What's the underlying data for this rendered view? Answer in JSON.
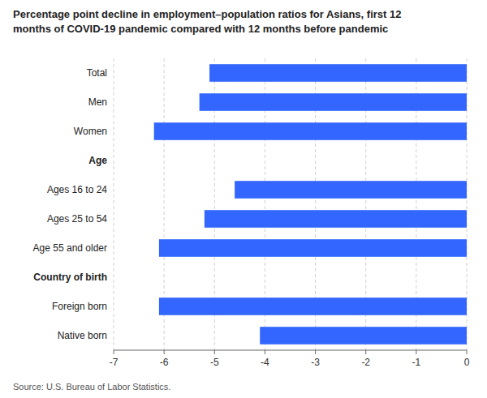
{
  "chart_data": {
    "type": "bar",
    "orientation": "horizontal",
    "title": "Percentage point decline in employment–population ratios for Asians, first 12\nmonths of COVID-19 pandemic compared with 12 months before pandemic",
    "categories": [
      "Total",
      "Men",
      "Women",
      "Age",
      "Ages 16 to 24",
      "Ages 25 to 54",
      "Age 55 and older",
      "Country of birth",
      "Foreign born",
      "Native born"
    ],
    "values": [
      -5.1,
      -5.3,
      -6.2,
      null,
      -4.6,
      -5.2,
      -6.1,
      null,
      -6.1,
      -4.1
    ],
    "color": "#3366ff",
    "xlim": [
      -7,
      0
    ],
    "xticks": [
      -7,
      -6,
      -5,
      -4,
      -3,
      -2,
      -1,
      0
    ],
    "grid": true,
    "source": "Source: U.S. Bureau of Labor Statistics."
  }
}
